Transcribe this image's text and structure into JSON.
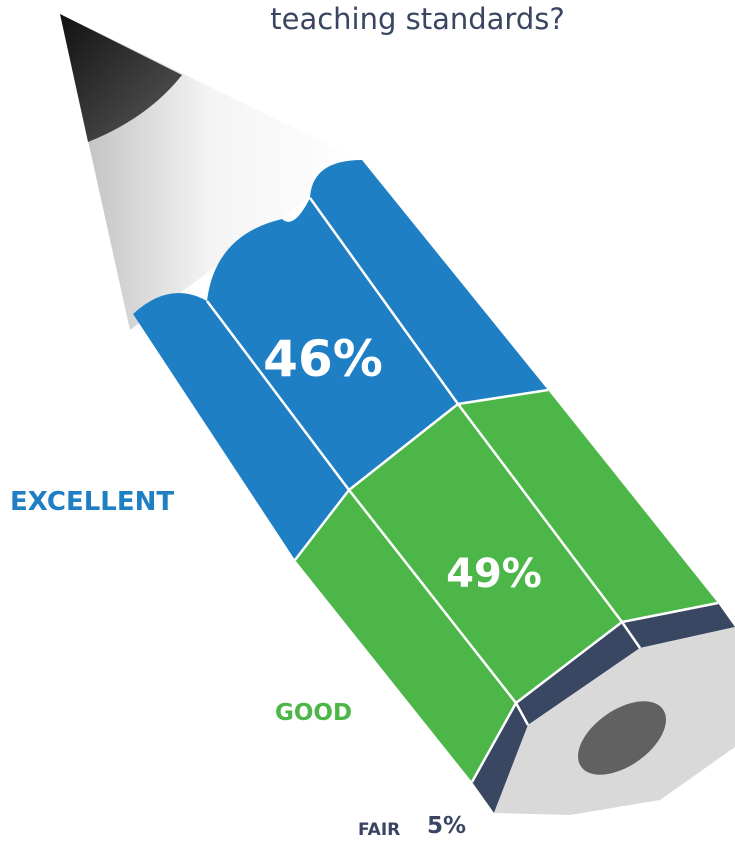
{
  "title": "teaching standards?",
  "colors": {
    "excellent": "#1f7fc4",
    "good": "#4cb748",
    "fair": "#3a4763",
    "text_dark": "#3a4661"
  },
  "chart_data": {
    "type": "pie",
    "title": "teaching standards?",
    "categories": [
      "EXCELLENT",
      "GOOD",
      "FAIR"
    ],
    "values": [
      46,
      49,
      5
    ],
    "labels": [
      "46%",
      "49%",
      "5%"
    ]
  }
}
